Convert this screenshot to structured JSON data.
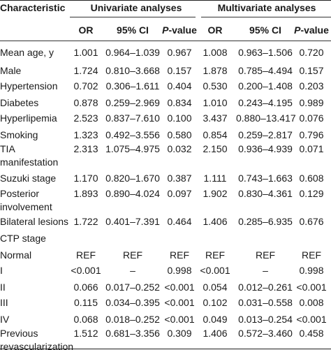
{
  "header": {
    "characteristic": "Characteristic",
    "univariate": "Univariate analyses",
    "multivariate": "Multivariate analyses",
    "or": "OR",
    "ci": "95% CI",
    "p_italic": "P",
    "p_rest": "-value"
  },
  "rows": [
    {
      "label": [
        "Mean age, y"
      ],
      "u": [
        "1.001",
        "0.964–1.039",
        "0.967"
      ],
      "m": [
        "1.008",
        "0.963–1.506",
        "0.720"
      ]
    },
    {
      "label": [
        "Male"
      ],
      "u": [
        "1.724",
        "0.810–3.668",
        "0.157"
      ],
      "m": [
        "1.878",
        "0.785–4.494",
        "0.157"
      ]
    },
    {
      "label": [
        "Hypertension"
      ],
      "u": [
        "0.702",
        "0.306–1.611",
        "0.404"
      ],
      "m": [
        "0.530",
        "0.200–1.408",
        "0.203"
      ]
    },
    {
      "label": [
        "Diabetes"
      ],
      "u": [
        "0.878",
        "0.259–2.969",
        "0.834"
      ],
      "m": [
        "1.010",
        "0.243–4.195",
        "0.989"
      ]
    },
    {
      "label": [
        "Hyperlipemia"
      ],
      "u": [
        "2.523",
        "0.837–7.610",
        "0.100"
      ],
      "m": [
        "3.437",
        "0.880–13.417",
        "0.076"
      ]
    },
    {
      "label": [
        "Smoking"
      ],
      "u": [
        "1.323",
        "0.492–3.556",
        "0.580"
      ],
      "m": [
        "0.854",
        "0.259–2.817",
        "0.796"
      ]
    },
    {
      "label": [
        "TIA",
        "manifestation"
      ],
      "u": [
        "2.313",
        "1.075–4.975",
        "0.032"
      ],
      "m": [
        "2.150",
        "0.936–4.939",
        "0.071"
      ]
    },
    {
      "label": [
        "Suzuki stage"
      ],
      "u": [
        "1.170",
        "0.820–1.670",
        "0.387"
      ],
      "m": [
        "1.111",
        "0.743–1.663",
        "0.608"
      ]
    },
    {
      "label": [
        "Posterior",
        "involvement"
      ],
      "u": [
        "1.893",
        "0.890–4.024",
        "0.097"
      ],
      "m": [
        "1.902",
        "0.830–4.361",
        "0.129"
      ]
    },
    {
      "label": [
        "Bilateral lesions"
      ],
      "u": [
        "1.722",
        "0.401–7.391",
        "0.464"
      ],
      "m": [
        "1.406",
        "0.285–6.935",
        "0.676"
      ]
    },
    {
      "label": [
        "CTP stage"
      ],
      "u": [
        "",
        "",
        ""
      ],
      "m": [
        "",
        "",
        ""
      ]
    },
    {
      "label": [
        "Normal"
      ],
      "u": [
        "REF",
        "REF",
        "REF"
      ],
      "m": [
        "REF",
        "REF",
        "REF"
      ]
    },
    {
      "label": [
        "I"
      ],
      "u": [
        "<0.001",
        "–",
        "0.998"
      ],
      "m": [
        "<0.001",
        "–",
        "0.998"
      ]
    },
    {
      "label": [
        "II"
      ],
      "u": [
        "0.066",
        "0.017–0.252",
        "<0.001"
      ],
      "m": [
        "0.054",
        "0.012–0.261",
        "<0.001"
      ]
    },
    {
      "label": [
        "III"
      ],
      "u": [
        "0.115",
        "0.034–0.395",
        "<0.001"
      ],
      "m": [
        "0.102",
        "0.031–0.558",
        "0.008"
      ]
    },
    {
      "label": [
        "IV"
      ],
      "u": [
        "0.068",
        "0.018–0.252",
        "<0.001"
      ],
      "m": [
        "0.049",
        "0.013–0.254",
        "<0.001"
      ]
    },
    {
      "label": [
        "Previous",
        "revascularization"
      ],
      "u": [
        "1.512",
        "0.681–3.356",
        "0.309"
      ],
      "m": [
        "1.406",
        "0.572–3.460",
        "0.458"
      ]
    }
  ]
}
